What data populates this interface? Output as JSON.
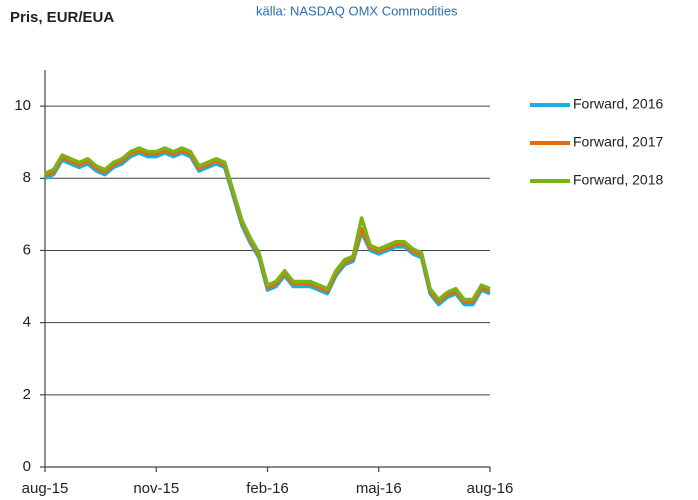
{
  "chart_data": {
    "type": "line",
    "title": "Pris, EUR/EUA",
    "subtitle": "källa: NASDAQ OMX Commodities",
    "categories": [
      "aug-15",
      null,
      null,
      null,
      null,
      null,
      null,
      null,
      null,
      null,
      null,
      null,
      null,
      "nov-15",
      null,
      null,
      null,
      null,
      null,
      null,
      null,
      null,
      null,
      null,
      null,
      null,
      "feb-16",
      null,
      null,
      null,
      null,
      null,
      null,
      null,
      null,
      null,
      null,
      null,
      null,
      "maj-16",
      null,
      null,
      null,
      null,
      null,
      null,
      null,
      null,
      null,
      null,
      null,
      null,
      "aug-16"
    ],
    "series": [
      {
        "name": "Forward, 2016",
        "color": "#1ab0e0",
        "values": [
          8.0,
          8.1,
          8.5,
          8.4,
          8.3,
          8.4,
          8.2,
          8.1,
          8.3,
          8.4,
          8.6,
          8.7,
          8.6,
          8.6,
          8.7,
          8.6,
          8.7,
          8.6,
          8.2,
          8.3,
          8.4,
          8.3,
          7.5,
          6.7,
          6.2,
          5.8,
          4.9,
          5.0,
          5.3,
          5.0,
          5.0,
          5.0,
          4.9,
          4.8,
          5.3,
          5.6,
          5.7,
          6.5,
          6.0,
          5.9,
          6.0,
          6.1,
          6.1,
          5.9,
          5.8,
          4.8,
          4.5,
          4.7,
          4.8,
          4.5,
          4.5,
          4.9,
          4.8
        ]
      },
      {
        "name": "Forward, 2017",
        "color": "#e36c0a",
        "values": [
          8.07,
          8.17,
          8.57,
          8.47,
          8.37,
          8.47,
          8.27,
          8.17,
          8.37,
          8.47,
          8.67,
          8.77,
          8.67,
          8.67,
          8.77,
          8.67,
          8.77,
          8.67,
          8.27,
          8.37,
          8.47,
          8.37,
          7.57,
          6.77,
          6.27,
          5.87,
          4.97,
          5.07,
          5.37,
          5.07,
          5.07,
          5.07,
          4.97,
          4.87,
          5.37,
          5.67,
          5.77,
          6.6,
          6.07,
          5.97,
          6.07,
          6.17,
          6.17,
          5.97,
          5.87,
          4.87,
          4.57,
          4.77,
          4.87,
          4.57,
          4.57,
          4.97,
          4.87
        ]
      },
      {
        "name": "Forward, 2018",
        "color": "#7ab317",
        "values": [
          8.14,
          8.24,
          8.64,
          8.54,
          8.44,
          8.54,
          8.34,
          8.24,
          8.44,
          8.54,
          8.74,
          8.84,
          8.74,
          8.74,
          8.84,
          8.74,
          8.84,
          8.74,
          8.34,
          8.44,
          8.54,
          8.44,
          7.64,
          6.84,
          6.34,
          5.94,
          5.04,
          5.14,
          5.44,
          5.14,
          5.14,
          5.14,
          5.04,
          4.94,
          5.44,
          5.74,
          5.84,
          6.9,
          6.14,
          6.04,
          6.14,
          6.24,
          6.24,
          6.04,
          5.94,
          4.94,
          4.64,
          4.84,
          4.94,
          4.64,
          4.64,
          5.04,
          4.94
        ]
      }
    ],
    "ylim": [
      0,
      11
    ],
    "yticks": [
      0,
      2,
      4,
      6,
      8,
      10
    ],
    "grid": true,
    "legend": "right"
  }
}
